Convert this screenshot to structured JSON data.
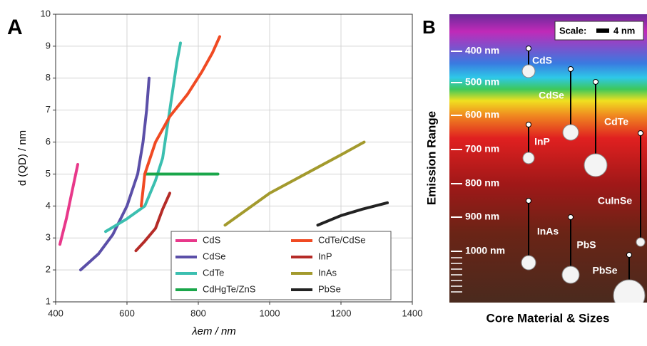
{
  "chart_data": {
    "type": "line",
    "panel": "A",
    "xlabel": "λem / nm",
    "ylabel": "d (QD) / nm",
    "xlim": [
      400,
      1400
    ],
    "xticks": [
      400,
      600,
      800,
      1000,
      1200,
      1400
    ],
    "ylim": [
      1,
      10
    ],
    "yticks": [
      1,
      2,
      3,
      4,
      5,
      6,
      7,
      8,
      9,
      10
    ],
    "grid": true,
    "legend": "lower right",
    "series": [
      {
        "name": "CdS",
        "color": "#e8388a",
        "x": [
          412,
          430,
          445,
          462
        ],
        "values": [
          2.8,
          3.6,
          4.4,
          5.3
        ]
      },
      {
        "name": "CdSe",
        "color": "#5b4fa8",
        "x": [
          470,
          520,
          560,
          600,
          630,
          645,
          655,
          662
        ],
        "values": [
          2.0,
          2.5,
          3.1,
          4.0,
          5.0,
          6.0,
          7.0,
          8.0
        ]
      },
      {
        "name": "CdTe",
        "color": "#3bbfb0",
        "x": [
          540,
          600,
          650,
          680,
          700,
          720,
          740,
          750
        ],
        "values": [
          3.2,
          3.6,
          4.0,
          4.8,
          5.5,
          7.0,
          8.5,
          9.1
        ]
      },
      {
        "name": "CdHgTe/ZnS",
        "color": "#1aa64a",
        "x": [
          650,
          700,
          750,
          775,
          800,
          825,
          855
        ],
        "values": [
          5.0,
          5.0,
          5.0,
          5.0,
          5.0,
          5.0,
          5.0
        ]
      },
      {
        "name": "CdTe/CdSe",
        "color": "#f04a23",
        "x": [
          640,
          650,
          680,
          720,
          770,
          810,
          840,
          860
        ],
        "values": [
          4.0,
          5.0,
          6.0,
          6.8,
          7.5,
          8.2,
          8.8,
          9.3
        ]
      },
      {
        "name": "InP",
        "color": "#b52b27",
        "x": [
          625,
          650,
          680,
          700,
          720
        ],
        "values": [
          2.6,
          2.9,
          3.3,
          3.9,
          4.4
        ]
      },
      {
        "name": "InAs",
        "color": "#a39a2d",
        "x": [
          875,
          950,
          1000,
          1100,
          1200,
          1265
        ],
        "values": [
          3.4,
          4.0,
          4.4,
          5.0,
          5.6,
          6.0
        ]
      },
      {
        "name": "PbSe",
        "color": "#222222",
        "x": [
          1135,
          1200,
          1260,
          1330
        ],
        "values": [
          3.4,
          3.7,
          3.9,
          4.1
        ]
      }
    ]
  },
  "panel_b": {
    "label": "B",
    "ylabel": "Emission Range",
    "xlabel": "Core Material & Sizes",
    "scale": "Scale:",
    "scale_size": "4 nm",
    "wavelengths": [
      "400 nm",
      "500 nm",
      "600 nm",
      "700 nm",
      "800 nm",
      "900 nm",
      "1000 nm"
    ],
    "materials": [
      "CdS",
      "CdSe",
      "CdTe",
      "InP",
      "CuInSe",
      "InAs",
      "PbS",
      "PbSe"
    ]
  }
}
